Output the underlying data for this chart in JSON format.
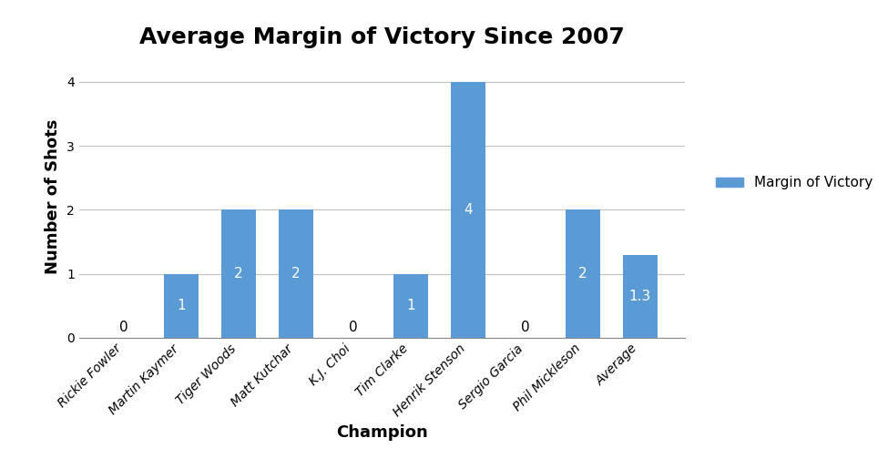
{
  "title": "Average Margin of Victory Since 2007",
  "xlabel": "Champion",
  "ylabel": "Number of Shots",
  "categories": [
    "Rickie Fowler",
    "Martin Kaymer",
    "Tiger Woods",
    "Matt Kutchar",
    "K.J. Choi",
    "Tim Clarke",
    "Henrik Stenson",
    "Sergio Garcia",
    "Phil Mickleson",
    "Average"
  ],
  "values": [
    0,
    1,
    2,
    2,
    0,
    1,
    4,
    0,
    2,
    1.3
  ],
  "bar_color": "#5B9BD5",
  "bar_labels": [
    "0",
    "1",
    "2",
    "2",
    "0",
    "1",
    "4",
    "0",
    "2",
    "1.3"
  ],
  "ylim": [
    0,
    4.4
  ],
  "yticks": [
    0,
    1,
    2,
    3,
    4
  ],
  "legend_label": "Margin of Victory",
  "title_fontsize": 18,
  "axis_label_fontsize": 13,
  "tick_label_fontsize": 10,
  "bar_label_fontsize": 11,
  "background_color": "#ffffff",
  "grid_color": "#c0c0c0"
}
